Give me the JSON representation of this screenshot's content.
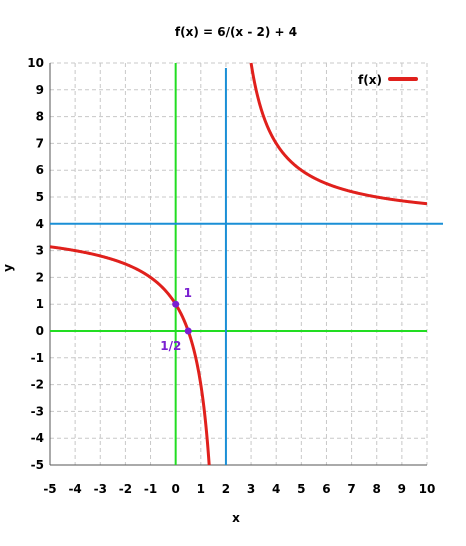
{
  "chart_data": {
    "type": "line",
    "title": "f(x) = 6/(x - 2)  + 4",
    "xlabel": "x",
    "ylabel": "y",
    "xlim": [
      -5,
      10
    ],
    "ylim": [
      -5,
      10
    ],
    "x_ticks": [
      "-5",
      "-4",
      "-3",
      "-2",
      "-1",
      "0",
      "1",
      "2",
      "3",
      "4",
      "5",
      "6",
      "7",
      "8",
      "9",
      "10"
    ],
    "y_ticks": [
      "-5",
      "-4",
      "-3",
      "-2",
      "-1",
      "0",
      "1",
      "2",
      "3",
      "4",
      "5",
      "6",
      "7",
      "8",
      "9",
      "10"
    ],
    "grid": true,
    "legend": {
      "position": "top-right",
      "entries": [
        "f(x)"
      ]
    },
    "series": [
      {
        "name": "f(x)",
        "color": "#e0201c",
        "function": "6/(x - 2) + 4",
        "asymptote_x": 2
      }
    ],
    "reference_lines": [
      {
        "orientation": "vertical",
        "value": 0,
        "color": "#22dd22"
      },
      {
        "orientation": "horizontal",
        "value": 0,
        "color": "#22dd22"
      },
      {
        "orientation": "vertical",
        "value": 2,
        "color": "#1a8fd6"
      },
      {
        "orientation": "horizontal",
        "value": 4,
        "color": "#1a8fd6"
      }
    ],
    "points": [
      {
        "x": 0,
        "y": 1,
        "label": "1",
        "color": "#7a1fd1"
      },
      {
        "x": 0.5,
        "y": 0,
        "label": "1/2",
        "color": "#7a1fd1"
      }
    ]
  }
}
